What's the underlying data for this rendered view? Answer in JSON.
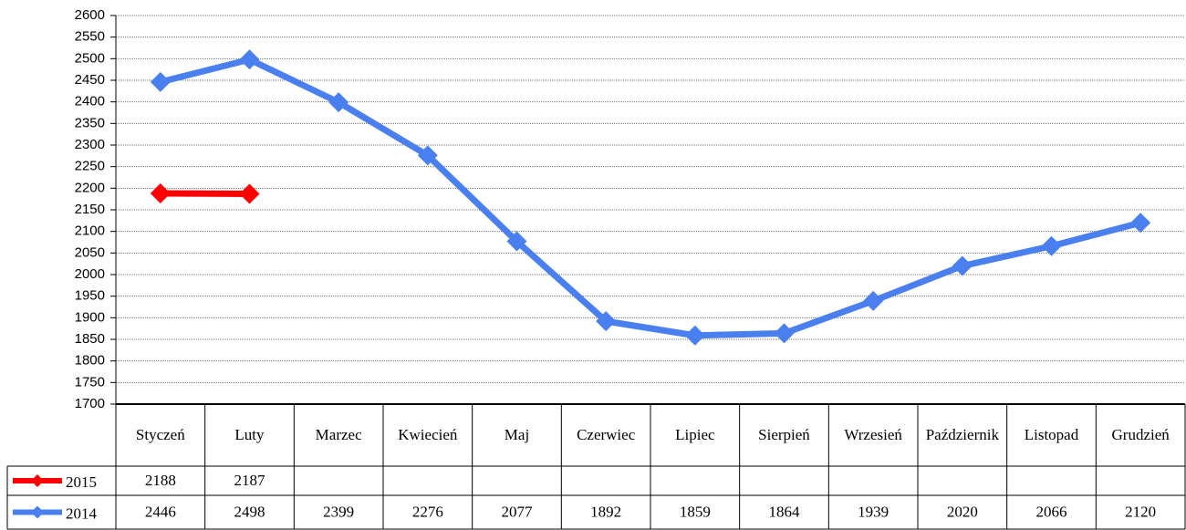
{
  "chart_data": {
    "type": "line",
    "categories": [
      "Styczeń",
      "Luty",
      "Marzec",
      "Kwiecień",
      "Maj",
      "Czerwiec",
      "Lipiec",
      "Sierpień",
      "Wrzesień",
      "Październik",
      "Listopad",
      "Grudzień"
    ],
    "series": [
      {
        "name": "2015",
        "color": "#ff0000",
        "values": [
          2188,
          2187,
          null,
          null,
          null,
          null,
          null,
          null,
          null,
          null,
          null,
          null
        ]
      },
      {
        "name": "2014",
        "color": "#4a7ff0",
        "values": [
          2446,
          2498,
          2399,
          2276,
          2077,
          1892,
          1859,
          1864,
          1939,
          2020,
          2066,
          2120
        ]
      }
    ],
    "ylim": [
      1700,
      2600
    ],
    "yticks": [
      1700,
      1750,
      1800,
      1850,
      1900,
      1950,
      2000,
      2050,
      2100,
      2150,
      2200,
      2250,
      2300,
      2350,
      2400,
      2450,
      2500,
      2550,
      2600
    ],
    "grid": true
  }
}
